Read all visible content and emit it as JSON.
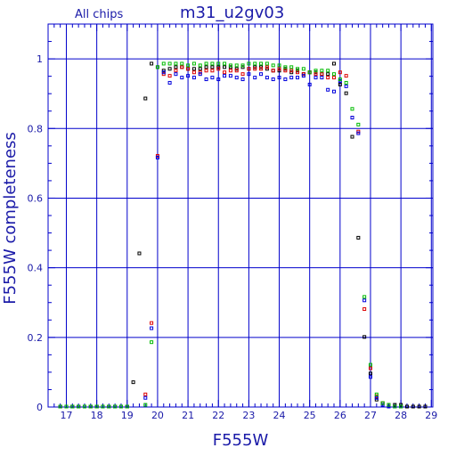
{
  "chart_data": {
    "type": "scatter",
    "title": "m31_u2gv03",
    "annotation": "All chips",
    "xlabel": "F555W",
    "ylabel": "F555W completeness",
    "xlim": [
      16.4,
      29.05
    ],
    "ylim": [
      0,
      1.1
    ],
    "x_ticks": [
      "17",
      "18",
      "19",
      "20",
      "21",
      "22",
      "23",
      "24",
      "25",
      "26",
      "27",
      "28",
      "29"
    ],
    "y_ticks": [
      "0",
      "0.2",
      "0.4",
      "0.6",
      "0.8",
      "1"
    ],
    "grid": true,
    "marker": "open-square",
    "colors": {
      "axes": "#0000cc",
      "text": "#1a1aa8"
    },
    "series": [
      {
        "color": "#000000",
        "x": [
          16.8,
          17.0,
          17.2,
          17.4,
          17.6,
          17.8,
          18.0,
          18.2,
          18.4,
          18.6,
          18.8,
          19.0,
          19.2,
          19.4,
          19.6,
          19.8,
          20.0,
          20.2,
          20.4,
          20.6,
          20.8,
          21.0,
          21.2,
          21.4,
          21.6,
          21.8,
          22.0,
          22.2,
          22.4,
          22.6,
          22.8,
          23.0,
          23.2,
          23.4,
          23.6,
          23.8,
          24.0,
          24.2,
          24.4,
          24.6,
          24.8,
          25.0,
          25.2,
          25.4,
          25.6,
          25.8,
          26.0,
          26.2,
          26.4,
          26.6,
          26.8,
          27.0,
          27.2,
          27.4,
          27.6,
          27.8,
          28.0,
          28.2,
          28.4,
          28.6,
          28.8
        ],
        "y": [
          0.0,
          0.0,
          0.0,
          0.0,
          0.0,
          0.0,
          0.0,
          0.0,
          0.0,
          0.0,
          0.0,
          0.0,
          0.07,
          0.44,
          0.885,
          0.985,
          0.975,
          0.965,
          0.97,
          0.975,
          0.975,
          0.97,
          0.97,
          0.97,
          0.975,
          0.975,
          0.975,
          0.975,
          0.975,
          0.97,
          0.975,
          0.97,
          0.975,
          0.975,
          0.97,
          0.965,
          0.965,
          0.97,
          0.96,
          0.965,
          0.955,
          0.96,
          0.96,
          0.955,
          0.955,
          0.985,
          0.925,
          0.9,
          0.775,
          0.485,
          0.2,
          0.095,
          0.02,
          0.01,
          0.005,
          0.005,
          0.005,
          0.0,
          0.0,
          0.0,
          0.0
        ]
      },
      {
        "color": "#dd0000",
        "x": [
          16.8,
          17.0,
          17.2,
          17.4,
          17.6,
          17.8,
          18.0,
          18.2,
          18.4,
          18.6,
          18.8,
          19.0,
          19.6,
          19.8,
          20.0,
          20.2,
          20.4,
          20.6,
          20.8,
          21.0,
          21.2,
          21.4,
          21.6,
          21.8,
          22.0,
          22.2,
          22.4,
          22.6,
          22.8,
          23.0,
          23.2,
          23.4,
          23.6,
          23.8,
          24.0,
          24.2,
          24.4,
          24.6,
          24.8,
          25.0,
          25.2,
          25.4,
          25.6,
          25.8,
          26.0,
          26.2,
          26.4,
          26.6,
          26.8,
          27.0,
          27.2,
          27.4,
          27.6,
          27.8,
          28.0
        ],
        "y": [
          0.0,
          0.0,
          0.0,
          0.0,
          0.0,
          0.0,
          0.0,
          0.0,
          0.0,
          0.0,
          0.0,
          0.0,
          0.035,
          0.24,
          0.72,
          0.955,
          0.95,
          0.965,
          0.975,
          0.97,
          0.96,
          0.96,
          0.965,
          0.965,
          0.97,
          0.96,
          0.965,
          0.965,
          0.955,
          0.97,
          0.97,
          0.97,
          0.975,
          0.965,
          0.97,
          0.965,
          0.965,
          0.96,
          0.955,
          0.96,
          0.955,
          0.955,
          0.945,
          0.945,
          0.96,
          0.95,
          0.83,
          0.79,
          0.28,
          0.11,
          0.03,
          0.01,
          0.005,
          0.0,
          0.0
        ]
      },
      {
        "color": "#0000dd",
        "x": [
          16.8,
          17.0,
          17.2,
          17.4,
          17.6,
          17.8,
          18.0,
          18.2,
          18.4,
          18.6,
          18.8,
          19.0,
          19.6,
          19.8,
          20.0,
          20.2,
          20.4,
          20.6,
          20.8,
          21.0,
          21.2,
          21.4,
          21.6,
          21.8,
          22.0,
          22.2,
          22.4,
          22.6,
          22.8,
          23.0,
          23.2,
          23.4,
          23.6,
          23.8,
          24.0,
          24.2,
          24.4,
          24.6,
          24.8,
          25.0,
          25.2,
          25.4,
          25.6,
          25.8,
          26.0,
          26.2,
          26.4,
          26.6,
          26.8,
          27.0,
          27.2,
          27.4,
          27.6,
          27.8,
          28.0
        ],
        "y": [
          0.0,
          0.0,
          0.0,
          0.0,
          0.0,
          0.0,
          0.0,
          0.0,
          0.0,
          0.0,
          0.0,
          0.0,
          0.025,
          0.225,
          0.715,
          0.96,
          0.93,
          0.955,
          0.945,
          0.95,
          0.945,
          0.955,
          0.94,
          0.945,
          0.94,
          0.95,
          0.95,
          0.945,
          0.94,
          0.955,
          0.945,
          0.955,
          0.945,
          0.94,
          0.945,
          0.94,
          0.945,
          0.945,
          0.95,
          0.925,
          0.945,
          0.945,
          0.91,
          0.905,
          0.935,
          0.92,
          0.83,
          0.785,
          0.305,
          0.085,
          0.025,
          0.005,
          0.0,
          0.0,
          0.0
        ]
      },
      {
        "color": "#00bb00",
        "x": [
          16.8,
          17.0,
          17.2,
          17.4,
          17.6,
          17.8,
          18.0,
          18.2,
          18.4,
          18.6,
          18.8,
          19.0,
          19.6,
          19.8,
          20.0,
          20.2,
          20.4,
          20.6,
          20.8,
          21.0,
          21.2,
          21.4,
          21.6,
          21.8,
          22.0,
          22.2,
          22.4,
          22.6,
          22.8,
          23.0,
          23.2,
          23.4,
          23.6,
          23.8,
          24.0,
          24.2,
          24.4,
          24.6,
          24.8,
          25.0,
          25.2,
          25.4,
          25.6,
          25.8,
          26.0,
          26.2,
          26.4,
          26.6,
          26.8,
          27.0,
          27.2,
          27.4,
          27.6,
          27.8,
          28.0
        ],
        "y": [
          0.0,
          0.0,
          0.0,
          0.0,
          0.0,
          0.0,
          0.0,
          0.0,
          0.0,
          0.0,
          0.0,
          0.0,
          0.005,
          0.185,
          0.975,
          0.985,
          0.985,
          0.985,
          0.985,
          0.98,
          0.985,
          0.98,
          0.985,
          0.985,
          0.985,
          0.985,
          0.98,
          0.98,
          0.98,
          0.985,
          0.985,
          0.985,
          0.985,
          0.98,
          0.98,
          0.975,
          0.975,
          0.97,
          0.97,
          0.96,
          0.965,
          0.965,
          0.965,
          0.955,
          0.94,
          0.93,
          0.855,
          0.81,
          0.315,
          0.12,
          0.035,
          0.01,
          0.005,
          0.0,
          0.0
        ]
      }
    ]
  }
}
